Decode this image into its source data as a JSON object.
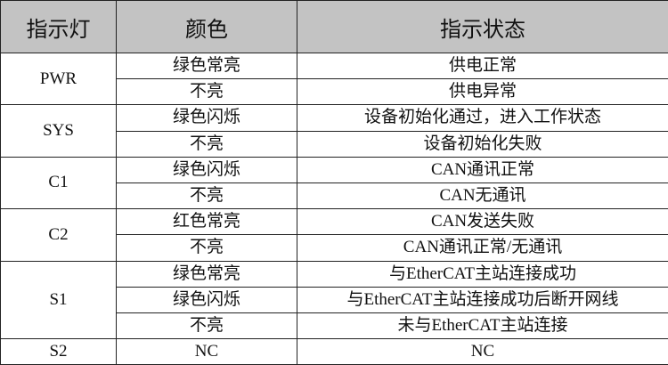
{
  "headers": [
    "指示灯",
    "颜色",
    "指示状态"
  ],
  "groups": [
    {
      "indicator": "PWR",
      "rows": [
        {
          "color": "绿色常亮",
          "status": "供电正常"
        },
        {
          "color": "不亮",
          "status": "供电异常"
        }
      ]
    },
    {
      "indicator": "SYS",
      "rows": [
        {
          "color": "绿色闪烁",
          "status": "设备初始化通过，进入工作状态"
        },
        {
          "color": "不亮",
          "status": "设备初始化失败"
        }
      ]
    },
    {
      "indicator": "C1",
      "rows": [
        {
          "color": "绿色闪烁",
          "status": "CAN通讯正常"
        },
        {
          "color": "不亮",
          "status": "CAN无通讯"
        }
      ]
    },
    {
      "indicator": "C2",
      "rows": [
        {
          "color": "红色常亮",
          "status": "CAN发送失败"
        },
        {
          "color": "不亮",
          "status": "CAN通讯正常/无通讯"
        }
      ]
    },
    {
      "indicator": "S1",
      "rows": [
        {
          "color": "绿色常亮",
          "status": "与EtherCAT主站连接成功"
        },
        {
          "color": "绿色闪烁",
          "status": "与EtherCAT主站连接成功后断开网线"
        },
        {
          "color": "不亮",
          "status": "未与EtherCAT主站连接"
        }
      ]
    },
    {
      "indicator": "S2",
      "rows": [
        {
          "color": "NC",
          "status": "NC"
        }
      ]
    }
  ]
}
